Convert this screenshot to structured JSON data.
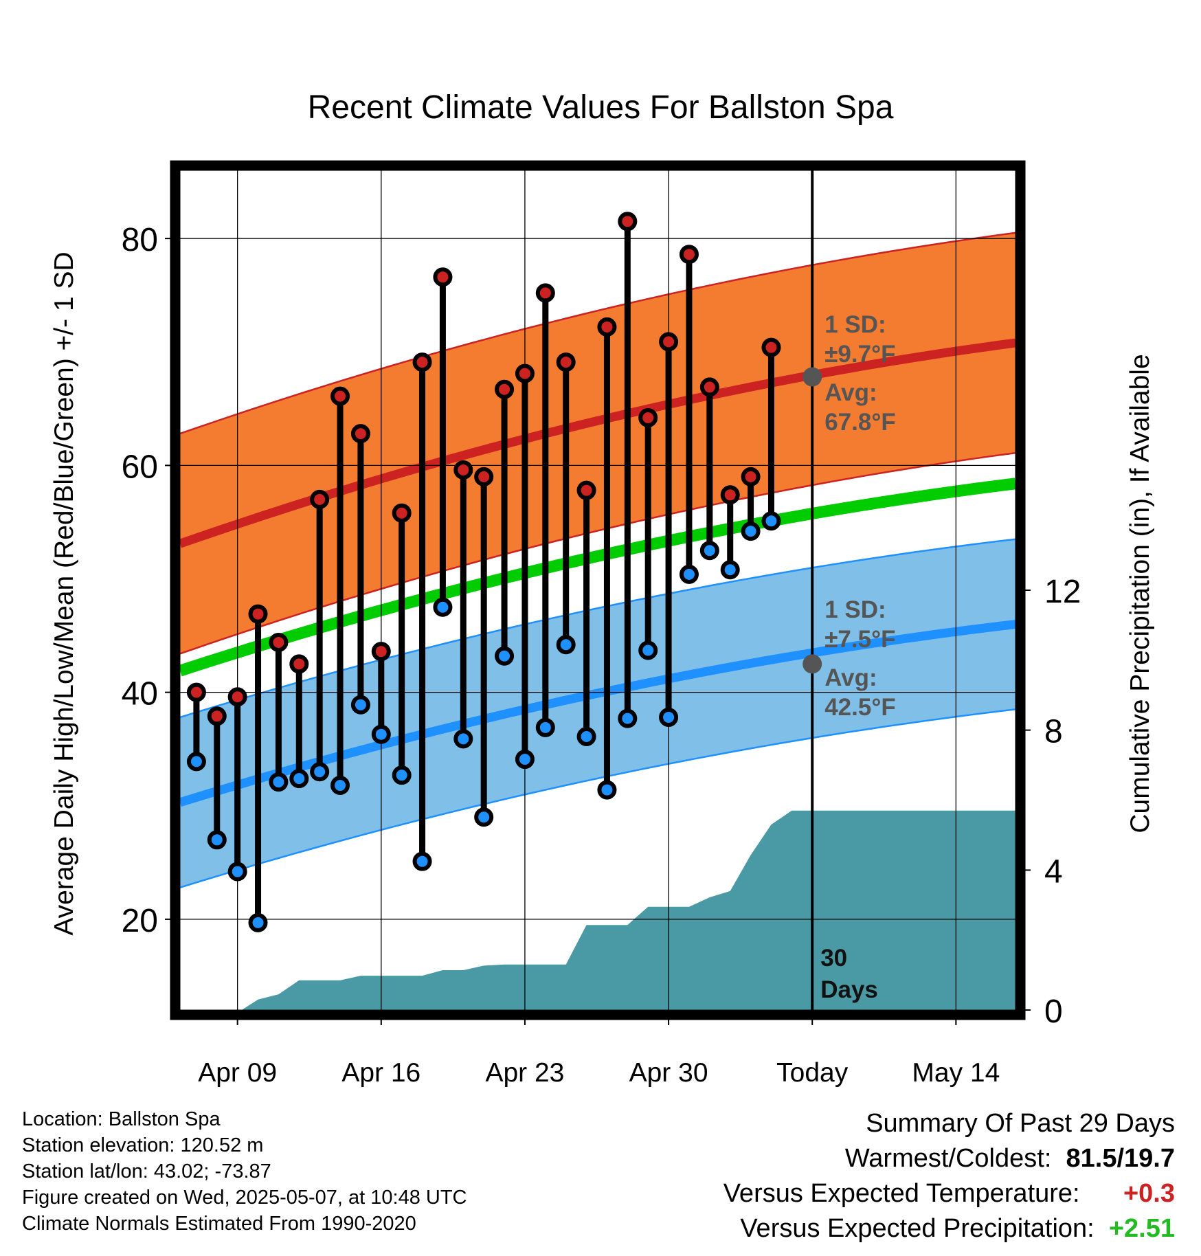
{
  "chart_data": {
    "type": "line",
    "title": "Recent Climate Values For Ballston Spa",
    "xlabel": "Day",
    "ylabel": "Average Daily High/Low/Mean (Red/Blue/Green) +/- 1 SD",
    "y2label": "Cumulative Precipitation (in), If Available",
    "ylim": [
      12,
      86
    ],
    "y_ticks": [
      20,
      40,
      60,
      80
    ],
    "y2lim": [
      0,
      24
    ],
    "y2_ticks": [
      0,
      4,
      8,
      12
    ],
    "x_tick_labels": [
      "Apr 09",
      "Apr 16",
      "Apr 23",
      "Apr 30",
      "Today",
      "May 14"
    ],
    "x_ticks": [
      3,
      10,
      17,
      24,
      31,
      38
    ],
    "xlim": [
      0.2,
      40.9
    ],
    "grid": true,
    "today_x": 31,
    "highs": [
      40.0,
      37.9,
      39.6,
      46.9,
      44.4,
      42.5,
      57.0,
      66.1,
      62.8,
      43.6,
      55.8,
      69.1,
      76.6,
      59.6,
      59.0,
      66.7,
      68.1,
      75.2,
      69.1,
      57.8,
      72.2,
      81.5,
      64.2,
      70.9,
      78.6,
      66.9,
      57.4,
      59.0,
      70.4
    ],
    "lows": [
      33.9,
      27.0,
      24.2,
      19.7,
      32.1,
      32.4,
      33.0,
      31.8,
      38.9,
      36.3,
      32.7,
      25.1,
      47.5,
      35.9,
      29.0,
      43.2,
      34.1,
      36.9,
      44.2,
      36.1,
      31.4,
      37.7,
      43.7,
      37.8,
      50.4,
      52.5,
      50.8,
      54.2,
      55.1
    ],
    "series": [
      {
        "name": "High",
        "color": "#cc2222",
        "band_color": "#f47c30"
      },
      {
        "name": "Low",
        "color": "#1e90ff",
        "band_color": "#80c0e8"
      },
      {
        "name": "Mean",
        "color": "#00cc00"
      },
      {
        "name": "Precipitation",
        "color": "#4a9aa6"
      }
    ],
    "normal_high_start": 53.1,
    "normal_high_end": 70.8,
    "normal_low_start": 30.3,
    "normal_low_end": 46.0,
    "normal_mean_start": 41.9,
    "normal_mean_end": 58.4,
    "sd_high": 9.7,
    "sd_low": 7.5,
    "precip_x": [
      0.2,
      3.2,
      4,
      5,
      6,
      7,
      8,
      9,
      10,
      11,
      12,
      13,
      14,
      15,
      16,
      17,
      18,
      19,
      20,
      21,
      22,
      23,
      24,
      25,
      26,
      27,
      28,
      29,
      30,
      31,
      40.9
    ],
    "precip_cum": [
      0,
      0,
      0.3,
      0.45,
      0.85,
      0.85,
      0.85,
      0.98,
      0.98,
      0.98,
      0.98,
      1.14,
      1.14,
      1.27,
      1.3,
      1.3,
      1.3,
      1.3,
      2.43,
      2.43,
      2.43,
      2.95,
      2.95,
      2.95,
      3.22,
      3.4,
      4.43,
      5.3,
      5.7,
      5.7,
      5.7
    ],
    "annotations": [
      {
        "sd_label": "1 SD:",
        "sd_value": "±9.7°F",
        "avg_label": "Avg:",
        "avg_value": "67.8°F"
      },
      {
        "sd_label": "1 SD:",
        "sd_value": "±7.5°F",
        "avg_label": "Avg:",
        "avg_value": "42.5°F"
      }
    ],
    "today_avg_high": 67.8,
    "today_avg_low": 42.5,
    "days_label_1": "30",
    "days_label_2": "Days"
  },
  "info": {
    "location": "Location: Ballston Spa",
    "elevation": "Station elevation: 120.52 m",
    "latlon": "Station lat/lon: 43.02; -73.87",
    "created": "Figure created on Wed, 2025-05-07, at 10:48 UTC",
    "normals": "Climate Normals Estimated From 1990-2020"
  },
  "summary": {
    "title": "Summary Of Past 29 Days",
    "warm_cold_label": "Warmest/Coldest:",
    "warm_cold_value": "81.5/19.7",
    "temp_label": "Versus Expected Temperature:",
    "temp_value": "+0.3",
    "temp_color": "#cc2222",
    "precip_label": "Versus Expected Precipitation:",
    "precip_value": "+2.51",
    "precip_color": "#22bb22"
  }
}
